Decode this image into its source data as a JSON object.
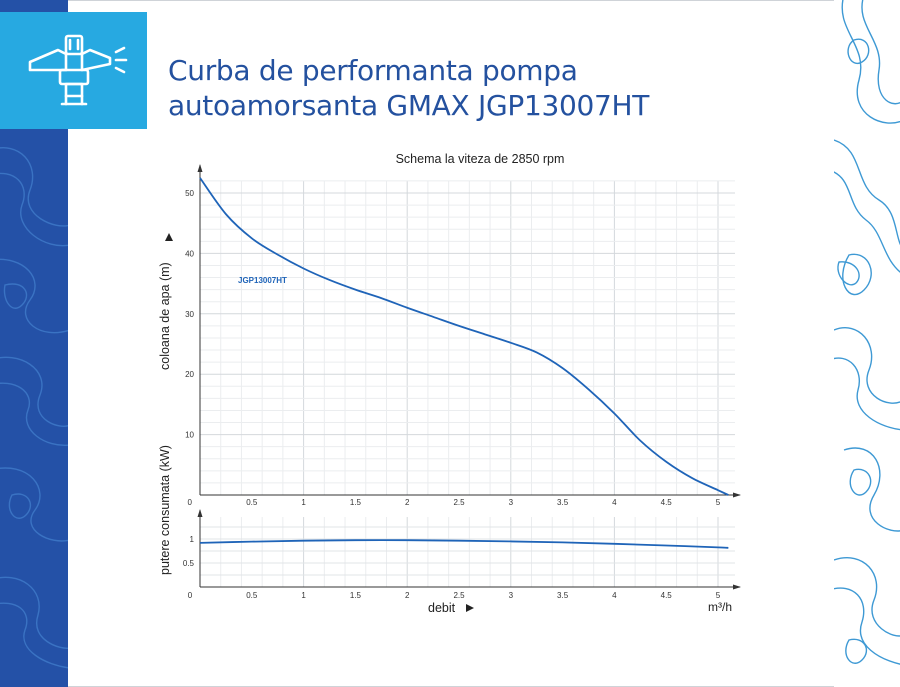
{
  "header": {
    "title_line1": "Curba de performanta pompa",
    "title_line2": "autoamorsanta GMAX JGP13007HT",
    "logo_icon": "sprinkler-pump-icon"
  },
  "colors": {
    "title": "#24519f",
    "logo_bg": "#27a9e1",
    "left_band": "#2451a7",
    "curve": "#1f64b8",
    "contour": "#2a8fd0"
  },
  "chart_data": [
    {
      "type": "line",
      "title": "Schema la viteza de 2850 rpm",
      "ylabel": "coloana de apa (m)",
      "ylim": [
        0,
        52
      ],
      "xlim": [
        0,
        5.2
      ],
      "x_ticks": [
        "0.5",
        "1",
        "1.5",
        "2",
        "2.5",
        "3",
        "3.5",
        "4",
        "4.5",
        "5"
      ],
      "y_ticks": [
        "0",
        "10",
        "20",
        "30",
        "40",
        "50"
      ],
      "grid": true,
      "series": [
        {
          "name": "JGP13007HT",
          "x": [
            0,
            0.25,
            0.5,
            0.75,
            1.0,
            1.25,
            1.5,
            1.75,
            2.0,
            2.25,
            2.5,
            2.75,
            3.0,
            3.25,
            3.5,
            3.75,
            4.0,
            4.25,
            4.5,
            4.75,
            5.0,
            5.1
          ],
          "y": [
            52.5,
            46.5,
            42.5,
            39.8,
            37.5,
            35.6,
            34.0,
            32.6,
            31.0,
            29.5,
            28.0,
            26.6,
            25.2,
            23.6,
            21.0,
            17.5,
            13.5,
            9.0,
            5.5,
            2.8,
            0.8,
            0.0
          ]
        }
      ]
    },
    {
      "type": "line",
      "ylabel": "putere consumata (kW)",
      "xlabel": "debit",
      "xunit": "m³/h",
      "ylim": [
        0,
        1.25
      ],
      "xlim": [
        0,
        5.2
      ],
      "x_ticks": [
        "0",
        "0.5",
        "1",
        "1.5",
        "2",
        "2.5",
        "3",
        "3.5",
        "4",
        "4.5",
        "5"
      ],
      "y_ticks": [
        "0.5",
        "1"
      ],
      "grid": true,
      "series": [
        {
          "x": [
            0,
            0.5,
            1.0,
            1.5,
            2.0,
            2.5,
            3.0,
            3.5,
            4.0,
            4.5,
            5.0,
            5.1
          ],
          "y": [
            0.92,
            0.945,
            0.965,
            0.975,
            0.975,
            0.965,
            0.95,
            0.93,
            0.9,
            0.865,
            0.825,
            0.815
          ]
        }
      ]
    }
  ]
}
